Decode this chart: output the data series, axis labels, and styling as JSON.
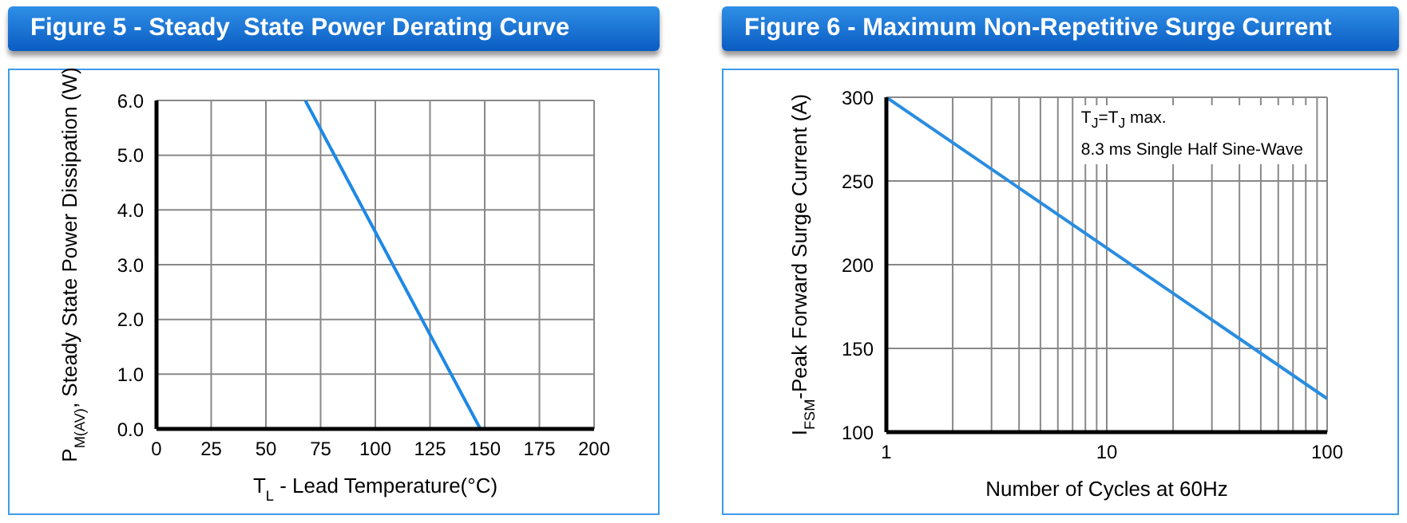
{
  "chart_data": [
    {
      "type": "line",
      "title": "Figure 5 - Steady  State Power Derating Curve",
      "xlabel": "T$_{L}$ - Lead Temperature(°C)",
      "ylabel": "P$_{M(AV)}$, Steady State Power Dissipation (W)",
      "x": [
        68,
        148
      ],
      "series": [
        {
          "color": "#1e88e5",
          "values": [
            6.0,
            0.0
          ]
        }
      ],
      "xlim": [
        0,
        200
      ],
      "xticks": [
        0,
        25,
        50,
        75,
        100,
        125,
        150,
        175,
        200
      ],
      "ylim": [
        0,
        6
      ],
      "yticks": [
        {
          "value": 0,
          "label": "0.0"
        },
        {
          "value": 1,
          "label": "1.0"
        },
        {
          "value": 2,
          "label": "2.0"
        },
        {
          "value": 3,
          "label": "3.0"
        },
        {
          "value": 4,
          "label": "4.0"
        },
        {
          "value": 5,
          "label": "5.0"
        },
        {
          "value": 6,
          "label": "6.0"
        }
      ],
      "grid": true,
      "marker": "none"
    },
    {
      "type": "line",
      "title": "Figure 6 - Maximum Non-Repetitive Surge Current",
      "xlabel": "Number of Cycles at 60Hz",
      "ylabel": "I$_{FSM}$-Peak Forward Surge Current (A)",
      "x": [
        1,
        100
      ],
      "series": [
        {
          "color": "#2a8de0",
          "values": [
            300,
            120
          ]
        }
      ],
      "xlim": [
        1,
        100
      ],
      "xticks": [
        1,
        {
          "value": 2,
          "label": null
        },
        {
          "value": 3,
          "label": null
        },
        {
          "value": 4,
          "label": null
        },
        {
          "value": 5,
          "label": null
        },
        {
          "value": 6,
          "label": null
        },
        {
          "value": 7,
          "label": null
        },
        {
          "value": 8,
          "label": null
        },
        {
          "value": 9,
          "label": null
        },
        10,
        {
          "value": 20,
          "label": null
        },
        {
          "value": 30,
          "label": null
        },
        {
          "value": 40,
          "label": null
        },
        {
          "value": 50,
          "label": null
        },
        {
          "value": 60,
          "label": null
        },
        {
          "value": 70,
          "label": null
        },
        {
          "value": 80,
          "label": null
        },
        {
          "value": 90,
          "label": null
        },
        100
      ],
      "ylim": [
        100,
        300
      ],
      "yticks": [
        100,
        150,
        200,
        250,
        300
      ],
      "log": "x",
      "grid": true,
      "marker": "none",
      "annotations": [
        "T$_{J}$=T$_{J}$ max.",
        "8.3 ms Single Half Sine-Wave"
      ]
    }
  ]
}
